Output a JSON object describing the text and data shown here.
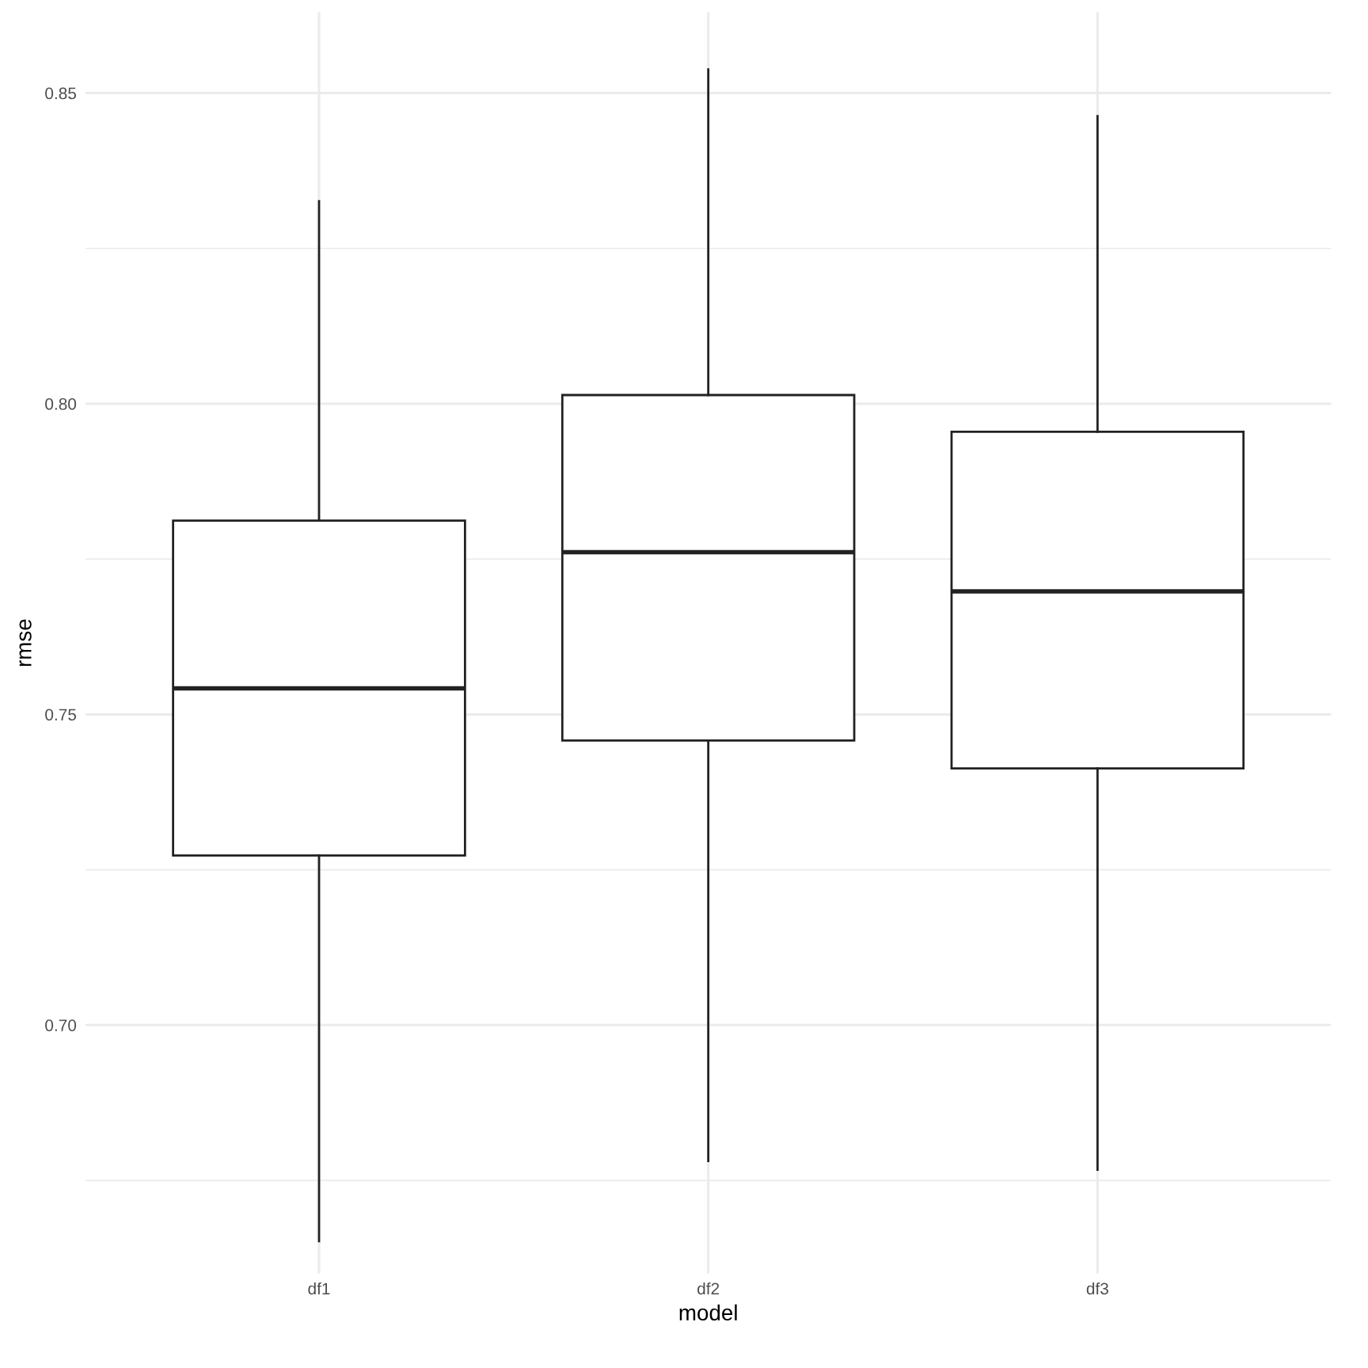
{
  "chart_data": {
    "type": "box",
    "xlabel": "model",
    "ylabel": "rmse",
    "categories": [
      "df1",
      "df2",
      "df3"
    ],
    "boxes": [
      {
        "low": 0.6652,
        "q1": 0.7273,
        "median": 0.7542,
        "q3": 0.7812,
        "high": 0.8326
      },
      {
        "low": 0.6781,
        "q1": 0.7458,
        "median": 0.7761,
        "q3": 0.8014,
        "high": 0.8538
      },
      {
        "low": 0.6767,
        "q1": 0.7413,
        "median": 0.7698,
        "q3": 0.7955,
        "high": 0.8463
      }
    ],
    "color": "#222222",
    "ylim": [
      0.66,
      0.863
    ],
    "yticks": [
      {
        "value": 0.675,
        "label": null
      },
      {
        "value": 0.7,
        "label": "0.70"
      },
      {
        "value": 0.725,
        "label": null
      },
      {
        "value": 0.75,
        "label": "0.75"
      },
      {
        "value": 0.775,
        "label": null
      },
      {
        "value": 0.8,
        "label": "0.80"
      },
      {
        "value": 0.825,
        "label": null
      },
      {
        "value": 0.85,
        "label": "0.85"
      }
    ],
    "grid": true
  }
}
